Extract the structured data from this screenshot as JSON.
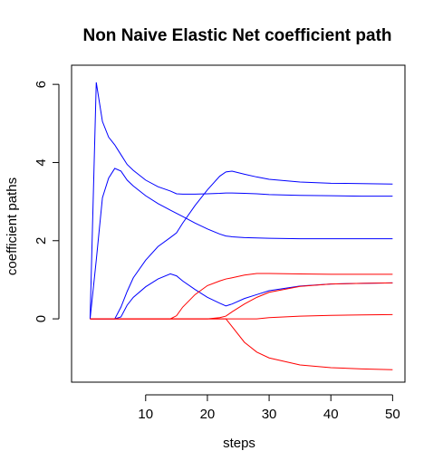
{
  "chart_data": {
    "type": "line",
    "title": "Non Naive Elastic Net coefficient path",
    "x_label": "steps",
    "y_label": "coefficient paths",
    "x": [
      1,
      2,
      3,
      4,
      5,
      6,
      7,
      8,
      10,
      12,
      14,
      15,
      16,
      18,
      20,
      22,
      23,
      24,
      26,
      28,
      30,
      35,
      40,
      45,
      50
    ],
    "series": [
      {
        "color": "#0000ff",
        "values": [
          0,
          6.05,
          5.05,
          4.65,
          4.45,
          4.2,
          3.95,
          3.8,
          3.55,
          3.38,
          3.27,
          3.2,
          3.19,
          3.19,
          3.2,
          3.21,
          3.22,
          3.22,
          3.21,
          3.2,
          3.18,
          3.16,
          3.15,
          3.14,
          3.14
        ]
      },
      {
        "color": "#0000ff",
        "values": [
          0,
          1.5,
          3.1,
          3.6,
          3.85,
          3.78,
          3.55,
          3.4,
          3.15,
          2.95,
          2.78,
          2.7,
          2.62,
          2.45,
          2.3,
          2.17,
          2.12,
          2.1,
          2.08,
          2.07,
          2.06,
          2.05,
          2.05,
          2.05,
          2.05
        ]
      },
      {
        "color": "#0000ff",
        "values": [
          0,
          0,
          0,
          0,
          0,
          0.3,
          0.7,
          1.05,
          1.5,
          1.85,
          2.08,
          2.2,
          2.45,
          2.9,
          3.3,
          3.65,
          3.76,
          3.78,
          3.7,
          3.63,
          3.57,
          3.5,
          3.47,
          3.46,
          3.45
        ]
      },
      {
        "color": "#0000ff",
        "values": [
          0,
          0,
          0,
          0,
          0,
          0.05,
          0.35,
          0.55,
          0.82,
          1.02,
          1.15,
          1.1,
          0.97,
          0.75,
          0.55,
          0.4,
          0.33,
          0.38,
          0.52,
          0.62,
          0.72,
          0.84,
          0.89,
          0.91,
          0.92
        ]
      },
      {
        "color": "#ff0000",
        "values": [
          0,
          0,
          0,
          0,
          0,
          0,
          0,
          0,
          0,
          0,
          0,
          0.08,
          0.3,
          0.62,
          0.85,
          0.97,
          1.02,
          1.05,
          1.12,
          1.16,
          1.16,
          1.15,
          1.14,
          1.14,
          1.14
        ]
      },
      {
        "color": "#ff0000",
        "values": [
          0,
          0,
          0,
          0,
          0,
          0,
          0,
          0,
          0,
          0,
          0,
          0,
          0,
          0,
          0,
          0.03,
          0.07,
          0.18,
          0.38,
          0.55,
          0.68,
          0.83,
          0.89,
          0.91,
          0.92
        ]
      },
      {
        "color": "#ff0000",
        "values": [
          0,
          0,
          0,
          0,
          0,
          0,
          0,
          0,
          0,
          0,
          0,
          0,
          0,
          0,
          0,
          0,
          0,
          0,
          0,
          0,
          0.03,
          0.07,
          0.09,
          0.1,
          0.11
        ]
      },
      {
        "color": "#ff0000",
        "values": [
          0,
          0,
          0,
          0,
          0,
          0,
          0,
          0,
          0,
          0,
          0,
          0,
          0,
          0,
          0,
          0,
          0,
          -0.2,
          -0.6,
          -0.85,
          -1.0,
          -1.18,
          -1.25,
          -1.28,
          -1.3
        ]
      }
    ],
    "xlim": [
      -2,
      52
    ],
    "xticks": [
      10,
      20,
      30,
      40,
      50
    ],
    "ylim": [
      -1.62,
      6.49
    ],
    "yticks": [
      0,
      2,
      4,
      6
    ]
  }
}
